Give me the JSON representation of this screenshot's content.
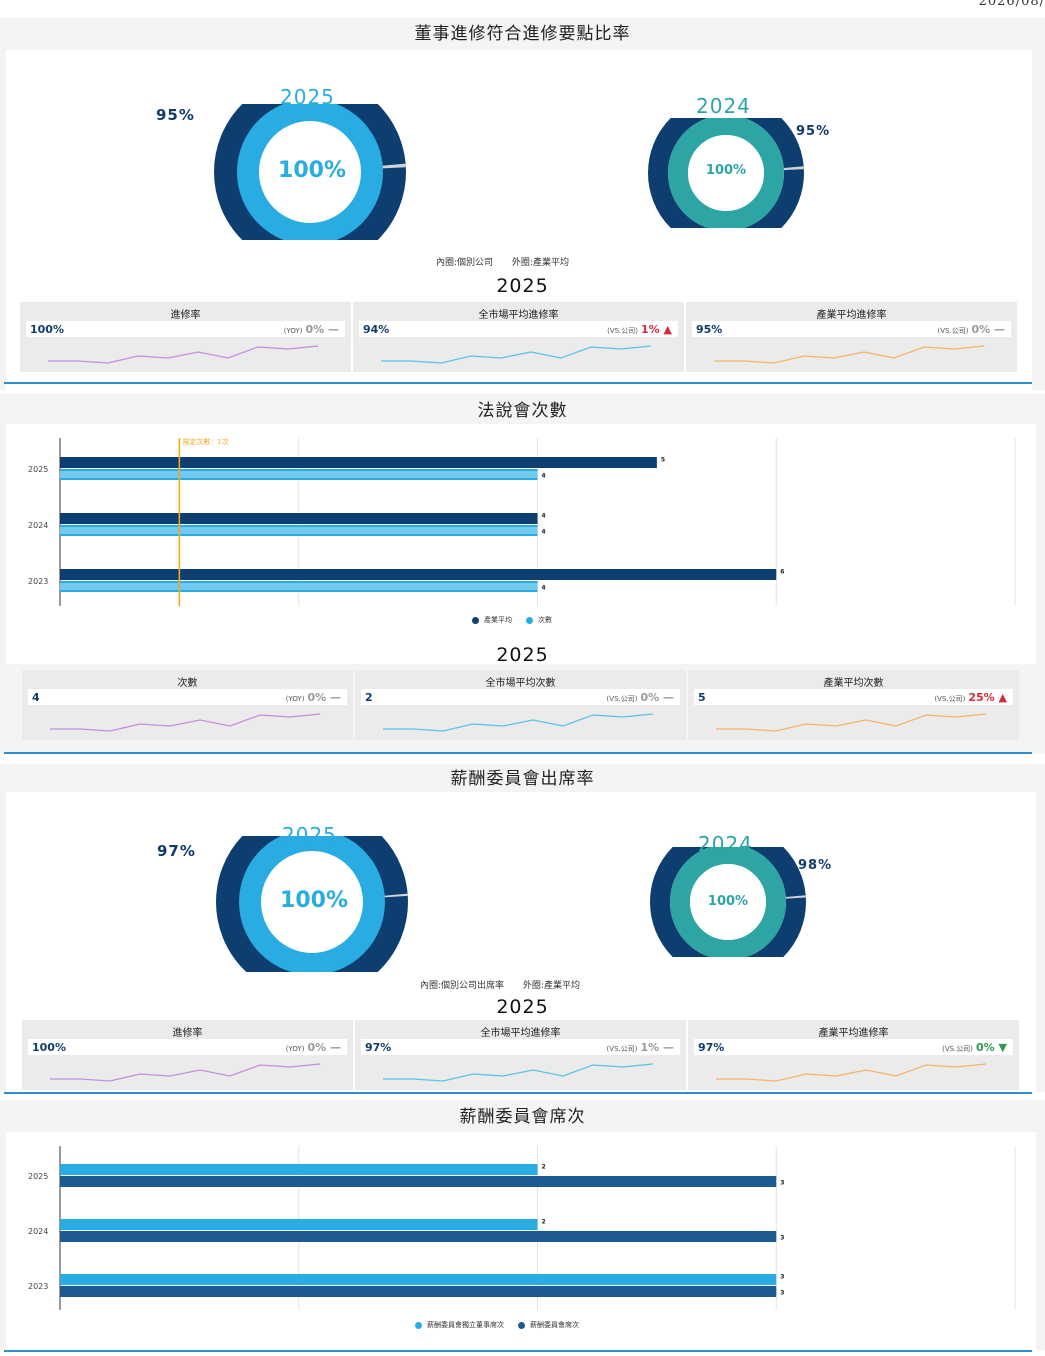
{
  "date_stamp": "2026/08/",
  "colors": {
    "dark_navy": "#0e3e70",
    "mid_navy": "#1e5a92",
    "sky": "#28ace2",
    "teal": "#2ea5a5",
    "ring_gap": "#d0d3d8",
    "purple": "#c38ee0",
    "cyan": "#5cc2e6",
    "orange": "#f5b46a",
    "target_line": "#f5a623",
    "up_red": "#d62b3a",
    "down_green": "#2e9a4f"
  },
  "s1": {
    "title": "董事進修符合進修要點比率",
    "donut_a": {
      "year": "2025",
      "inner_label": "100%",
      "outer_label": "95%",
      "inner_value": 100,
      "outer_value": 95
    },
    "donut_b": {
      "year": "2024",
      "inner_label": "100%",
      "outer_label": "95%",
      "inner_value": 100,
      "outer_value": 95
    },
    "legend": {
      "inner": "內圈:個別公司",
      "outer": "外圈:產業平均"
    },
    "kpi_year": "2025",
    "kpis": [
      {
        "label": "進修率",
        "value": "100%",
        "cmp_label": "(YOY)",
        "cmp_value": "0%",
        "trend": "flat"
      },
      {
        "label": "全市場平均進修率",
        "value": "94%",
        "cmp_label": "(VS.公司)",
        "cmp_value": "1%",
        "trend": "up"
      },
      {
        "label": "產業平均進修率",
        "value": "95%",
        "cmp_label": "(VS.公司)",
        "cmp_value": "0%",
        "trend": "flat"
      }
    ]
  },
  "s2": {
    "title": "法說會次數",
    "target_label": "規定次數：1次",
    "legend": {
      "a": "產業平均",
      "b": "次數"
    },
    "kpi_year": "2025",
    "kpis": [
      {
        "label": "次數",
        "value": "4",
        "cmp_label": "(YOY)",
        "cmp_value": "0%",
        "trend": "flat"
      },
      {
        "label": "全市場平均次數",
        "value": "2",
        "cmp_label": "(VS.公司)",
        "cmp_value": "0%",
        "trend": "flat"
      },
      {
        "label": "產業平均次數",
        "value": "5",
        "cmp_label": "(VS.公司)",
        "cmp_value": "25%",
        "trend": "up"
      }
    ]
  },
  "s3": {
    "title": "薪酬委員會出席率",
    "donut_a": {
      "year": "2025",
      "inner_label": "100%",
      "outer_label": "97%",
      "inner_value": 100,
      "outer_value": 97
    },
    "donut_b": {
      "year": "2024",
      "inner_label": "100%",
      "outer_label": "98%",
      "inner_value": 100,
      "outer_value": 98
    },
    "legend": {
      "inner": "內圈:個別公司出席率",
      "outer": "外圈:產業平均"
    },
    "kpi_year": "2025",
    "kpis": [
      {
        "label": "進修率",
        "value": "100%",
        "cmp_label": "(YOY)",
        "cmp_value": "0%",
        "trend": "flat"
      },
      {
        "label": "全市場平均進修率",
        "value": "97%",
        "cmp_label": "(VS.公司)",
        "cmp_value": "1%",
        "trend": "flat"
      },
      {
        "label": "產業平均進修率",
        "value": "97%",
        "cmp_label": "(VS.公司)",
        "cmp_value": "0%",
        "trend": "down"
      }
    ]
  },
  "s4": {
    "title": "薪酬委員會席次",
    "legend": {
      "a": "薪酬委員會獨立董事席次",
      "b": "薪酬委員會席次"
    }
  },
  "chart_data": [
    {
      "type": "pie",
      "chart": "董事進修符合進修要點比率",
      "year": "2025",
      "series": [
        {
          "name": "內圈:個別公司",
          "value": 100
        },
        {
          "name": "外圈:產業平均",
          "value": 95
        }
      ]
    },
    {
      "type": "pie",
      "chart": "董事進修符合進修要點比率",
      "year": "2024",
      "series": [
        {
          "name": "內圈:個別公司",
          "value": 100
        },
        {
          "name": "外圈:產業平均",
          "value": 95
        }
      ]
    },
    {
      "type": "bar",
      "title": "法說會次數",
      "orientation": "horizontal",
      "categories": [
        "2025",
        "2024",
        "2023"
      ],
      "series": [
        {
          "name": "產業平均",
          "values": [
            5,
            4,
            6
          ]
        },
        {
          "name": "次數",
          "values": [
            4,
            4,
            4
          ]
        }
      ],
      "xlim": [
        0,
        8
      ],
      "annotations": [
        {
          "text": "規定次數：1次",
          "x": 1
        }
      ],
      "grid": true,
      "legend": "bottom"
    },
    {
      "type": "pie",
      "chart": "薪酬委員會出席率",
      "year": "2025",
      "series": [
        {
          "name": "內圈:個別公司出席率",
          "value": 100
        },
        {
          "name": "外圈:產業平均",
          "value": 97
        }
      ]
    },
    {
      "type": "pie",
      "chart": "薪酬委員會出席率",
      "year": "2024",
      "series": [
        {
          "name": "內圈:個別公司出席率",
          "value": 100
        },
        {
          "name": "外圈:產業平均",
          "value": 98
        }
      ]
    },
    {
      "type": "bar",
      "title": "薪酬委員會席次",
      "orientation": "horizontal",
      "categories": [
        "2025",
        "2024",
        "2023"
      ],
      "series": [
        {
          "name": "薪酬委員會獨立董事席次",
          "values": [
            2,
            2,
            3
          ]
        },
        {
          "name": "薪酬委員會席次",
          "values": [
            3,
            3,
            3
          ]
        }
      ],
      "xlim": [
        0,
        4
      ],
      "grid": true,
      "legend": "bottom"
    }
  ]
}
